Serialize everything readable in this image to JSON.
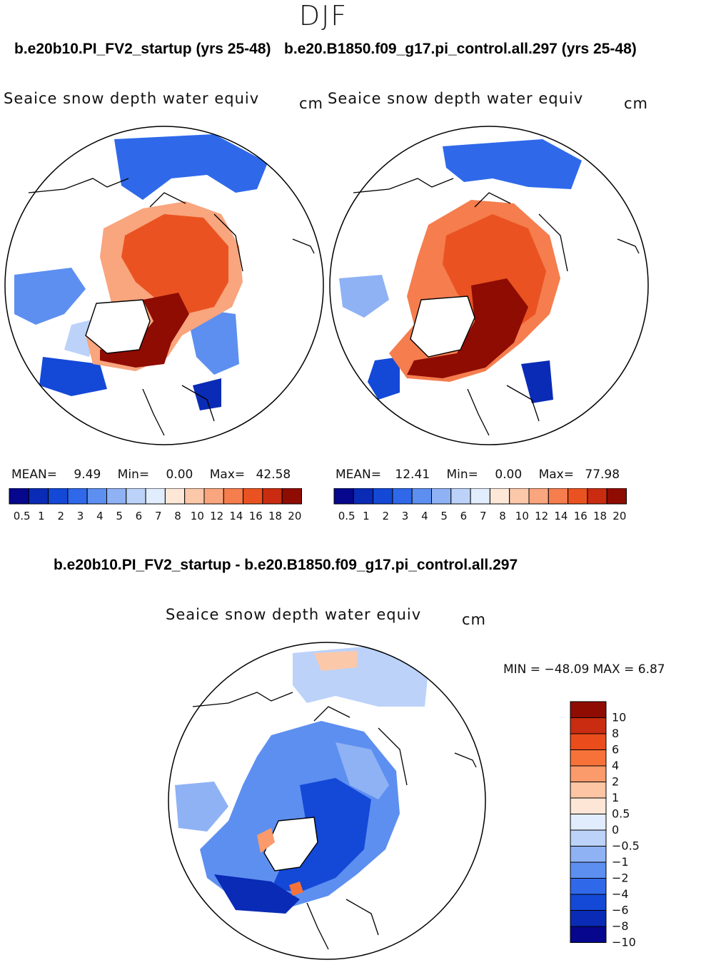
{
  "season": "DJF",
  "case1_title": "b.e20b10.PI_FV2_startup (yrs 25-48)",
  "case2_title": "b.e20.B1850.f09_g17.pi_control.all.297 (yrs 25-48)",
  "diff_title": "b.e20b10.PI_FV2_startup - b.e20.B1850.f09_g17.pi_control.all.297",
  "var_name": "Seaice snow depth water equiv",
  "units": "cm",
  "panel1": {
    "mean_label": "MEAN=",
    "mean": "9.49",
    "min_label": "Min=",
    "min": "0.00",
    "max_label": "Max=",
    "max": "42.58"
  },
  "panel2": {
    "mean_label": "MEAN=",
    "mean": "12.41",
    "min_label": "Min=",
    "min": "0.00",
    "max_label": "Max=",
    "max": "77.98"
  },
  "diff_stats": "MIN = −48.09  MAX =    6.87",
  "abs_levels": [
    "0.5",
    "1",
    "2",
    "3",
    "4",
    "5",
    "6",
    "7",
    "8",
    "10",
    "12",
    "14",
    "16",
    "18",
    "20"
  ],
  "abs_colors": [
    "#06078c",
    "#0a2bb5",
    "#1449d7",
    "#2f69ea",
    "#5d8ff0",
    "#8fb2f5",
    "#bcd2f9",
    "#e1ecfc",
    "#fde7d7",
    "#fcc8aa",
    "#f9a57e",
    "#f57d4e",
    "#ea5321",
    "#c92c10",
    "#8f0c03"
  ],
  "diff_levels": [
    "10",
    "8",
    "6",
    "4",
    "2",
    "1",
    "0.5",
    "0",
    "−0.5",
    "−1",
    "−2",
    "−4",
    "−6",
    "−8",
    "−10"
  ],
  "diff_colors": [
    "#8f0c03",
    "#c92c10",
    "#ea4d1b",
    "#f77239",
    "#fb9a6a",
    "#fdc5a4",
    "#fde6d6",
    "#e1ecfc",
    "#bcd2f9",
    "#8fb2f5",
    "#5d8ff0",
    "#2f69ea",
    "#1449d7",
    "#0a2bb5",
    "#06078c"
  ]
}
